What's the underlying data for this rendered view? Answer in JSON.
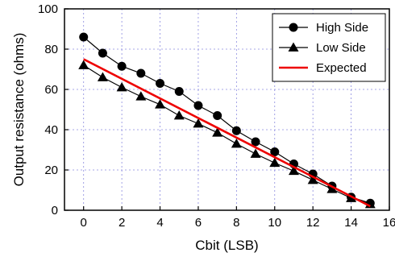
{
  "chart_data": {
    "type": "line",
    "xlabel": "Cbit (LSB)",
    "ylabel": "Output resistance (ohms)",
    "xlim": [
      -1,
      16
    ],
    "ylim": [
      0,
      100
    ],
    "xticks": [
      0,
      2,
      4,
      6,
      8,
      10,
      12,
      14,
      16
    ],
    "yticks": [
      0,
      20,
      40,
      60,
      80,
      100
    ],
    "grid": true,
    "legend_position": "top-right",
    "series": [
      {
        "name": "High Side",
        "marker": "circle",
        "color": "#000000",
        "x": [
          0,
          1,
          2,
          3,
          4,
          5,
          6,
          7,
          8,
          9,
          10,
          11,
          12,
          13,
          14,
          15
        ],
        "y": [
          86,
          78,
          71.5,
          68,
          63,
          59,
          52,
          47,
          39.5,
          34,
          29,
          23,
          18,
          12,
          6.5,
          3.5
        ]
      },
      {
        "name": "Low Side",
        "marker": "triangle",
        "color": "#000000",
        "x": [
          0,
          1,
          2,
          3,
          4,
          5,
          6,
          7,
          8,
          9,
          10,
          11,
          12,
          13,
          14,
          15
        ],
        "y": [
          72,
          66,
          61,
          56.5,
          52.5,
          47,
          43,
          38.5,
          33,
          28,
          23.5,
          19.5,
          15,
          10.5,
          6,
          3
        ]
      },
      {
        "name": "Expected",
        "marker": "none",
        "color": "#ee0000",
        "x": [
          0,
          15
        ],
        "y": [
          75,
          2
        ]
      }
    ]
  }
}
